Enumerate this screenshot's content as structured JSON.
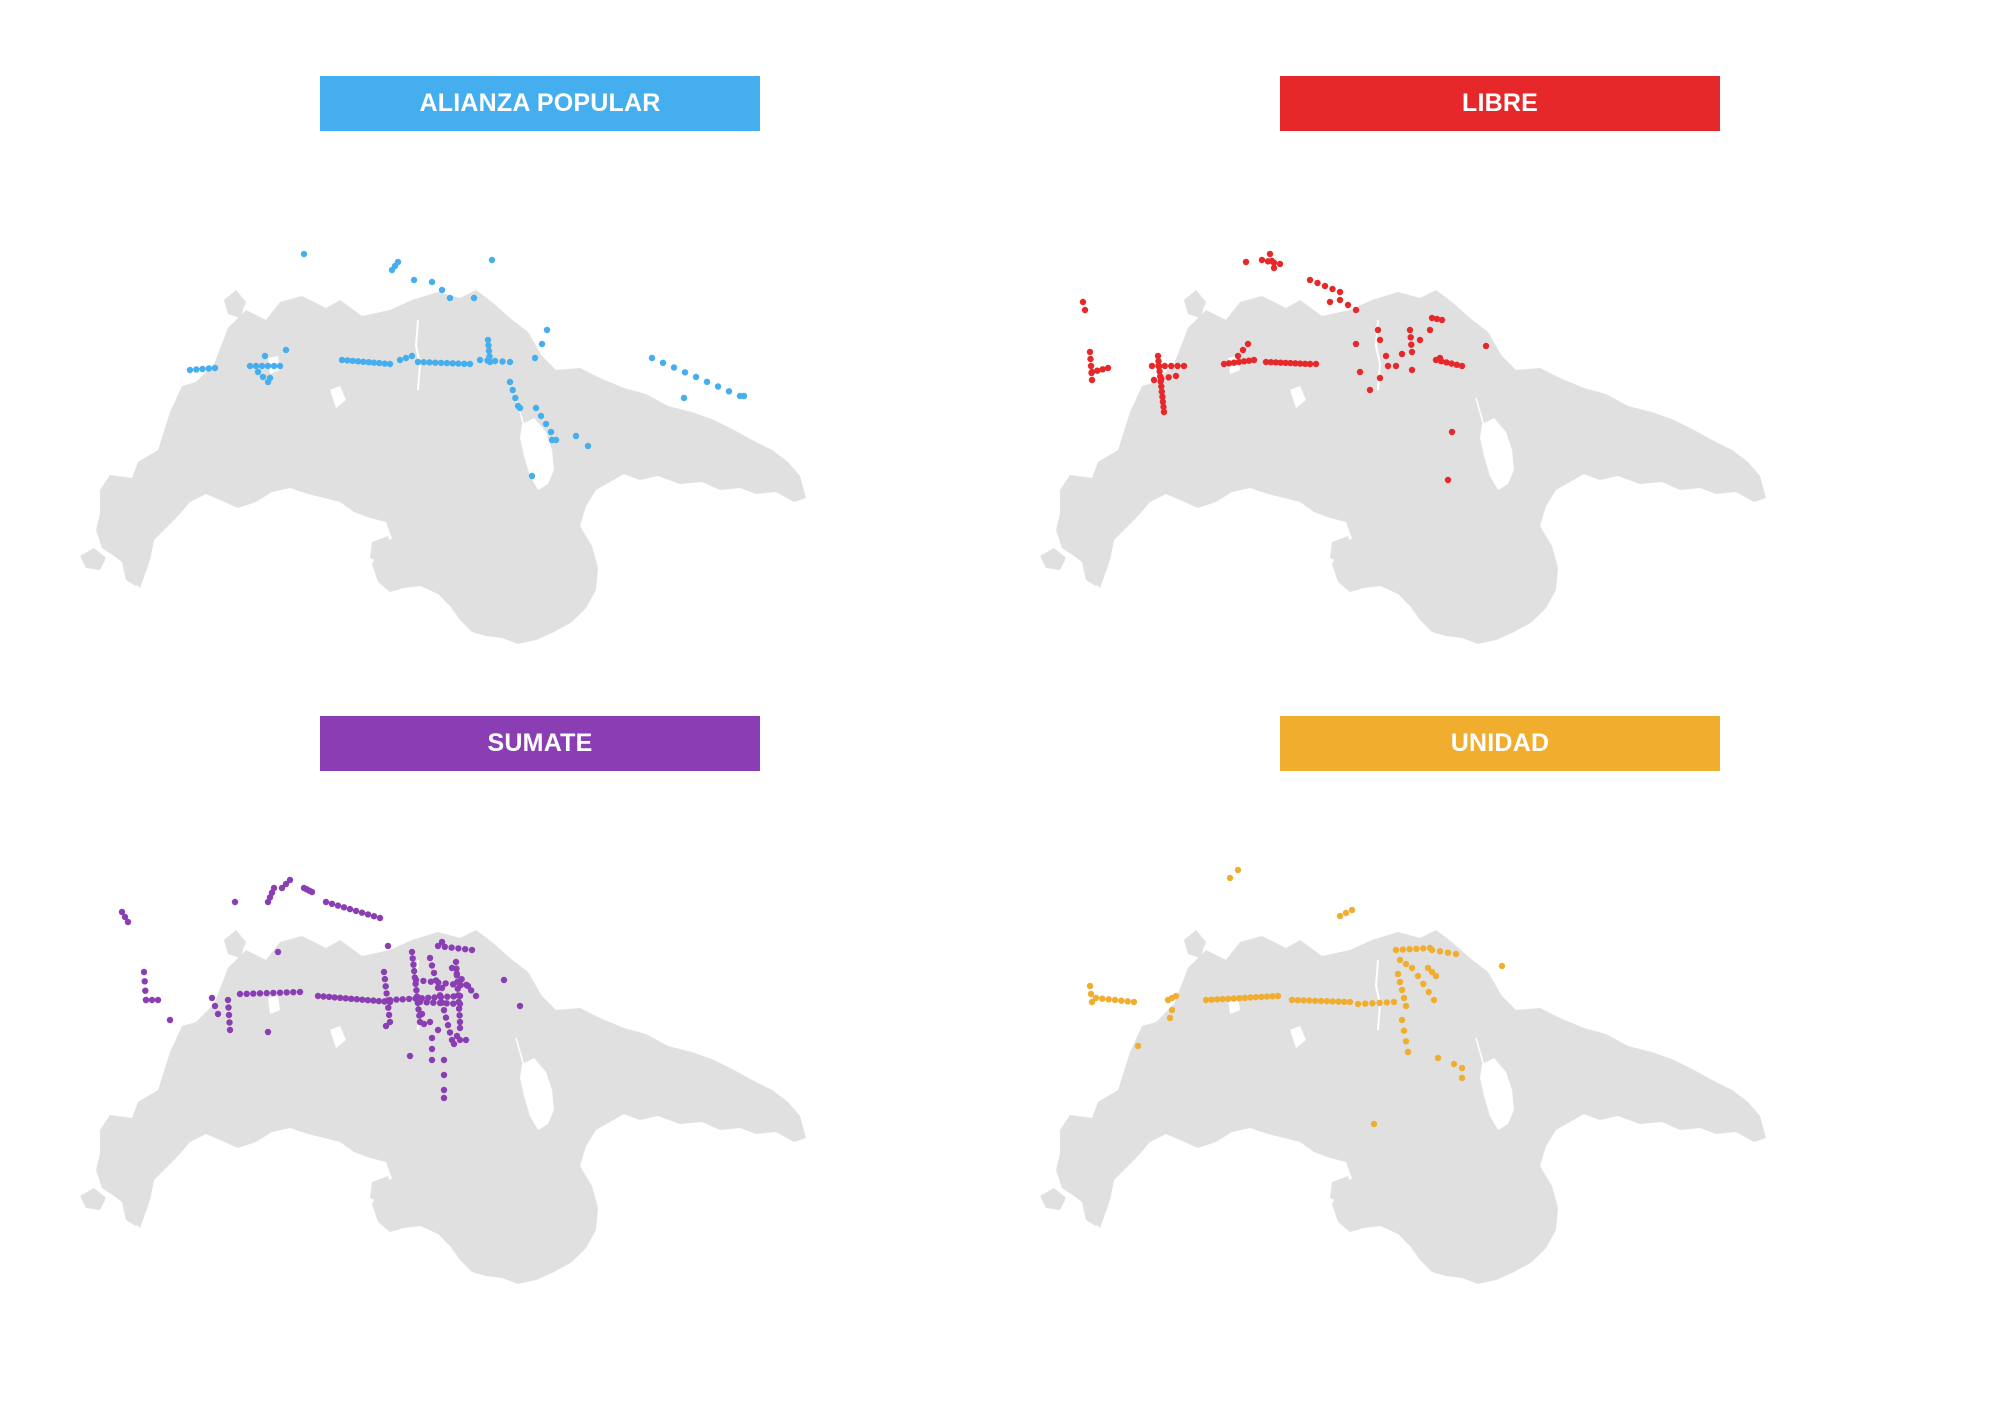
{
  "panels": [
    {
      "id": "alianza",
      "label": "ALIANZA POPULAR",
      "color": "#44aeee"
    },
    {
      "id": "libre",
      "label": "LIBRE",
      "color": "#e7282a"
    },
    {
      "id": "sumate",
      "label": "SUMATE",
      "color": "#8b3db3"
    },
    {
      "id": "unidad",
      "label": "UNIDAD",
      "color": "#f0ad2e"
    }
  ],
  "map": {
    "fill": "#e0e0e0",
    "marker_type": "dot"
  }
}
